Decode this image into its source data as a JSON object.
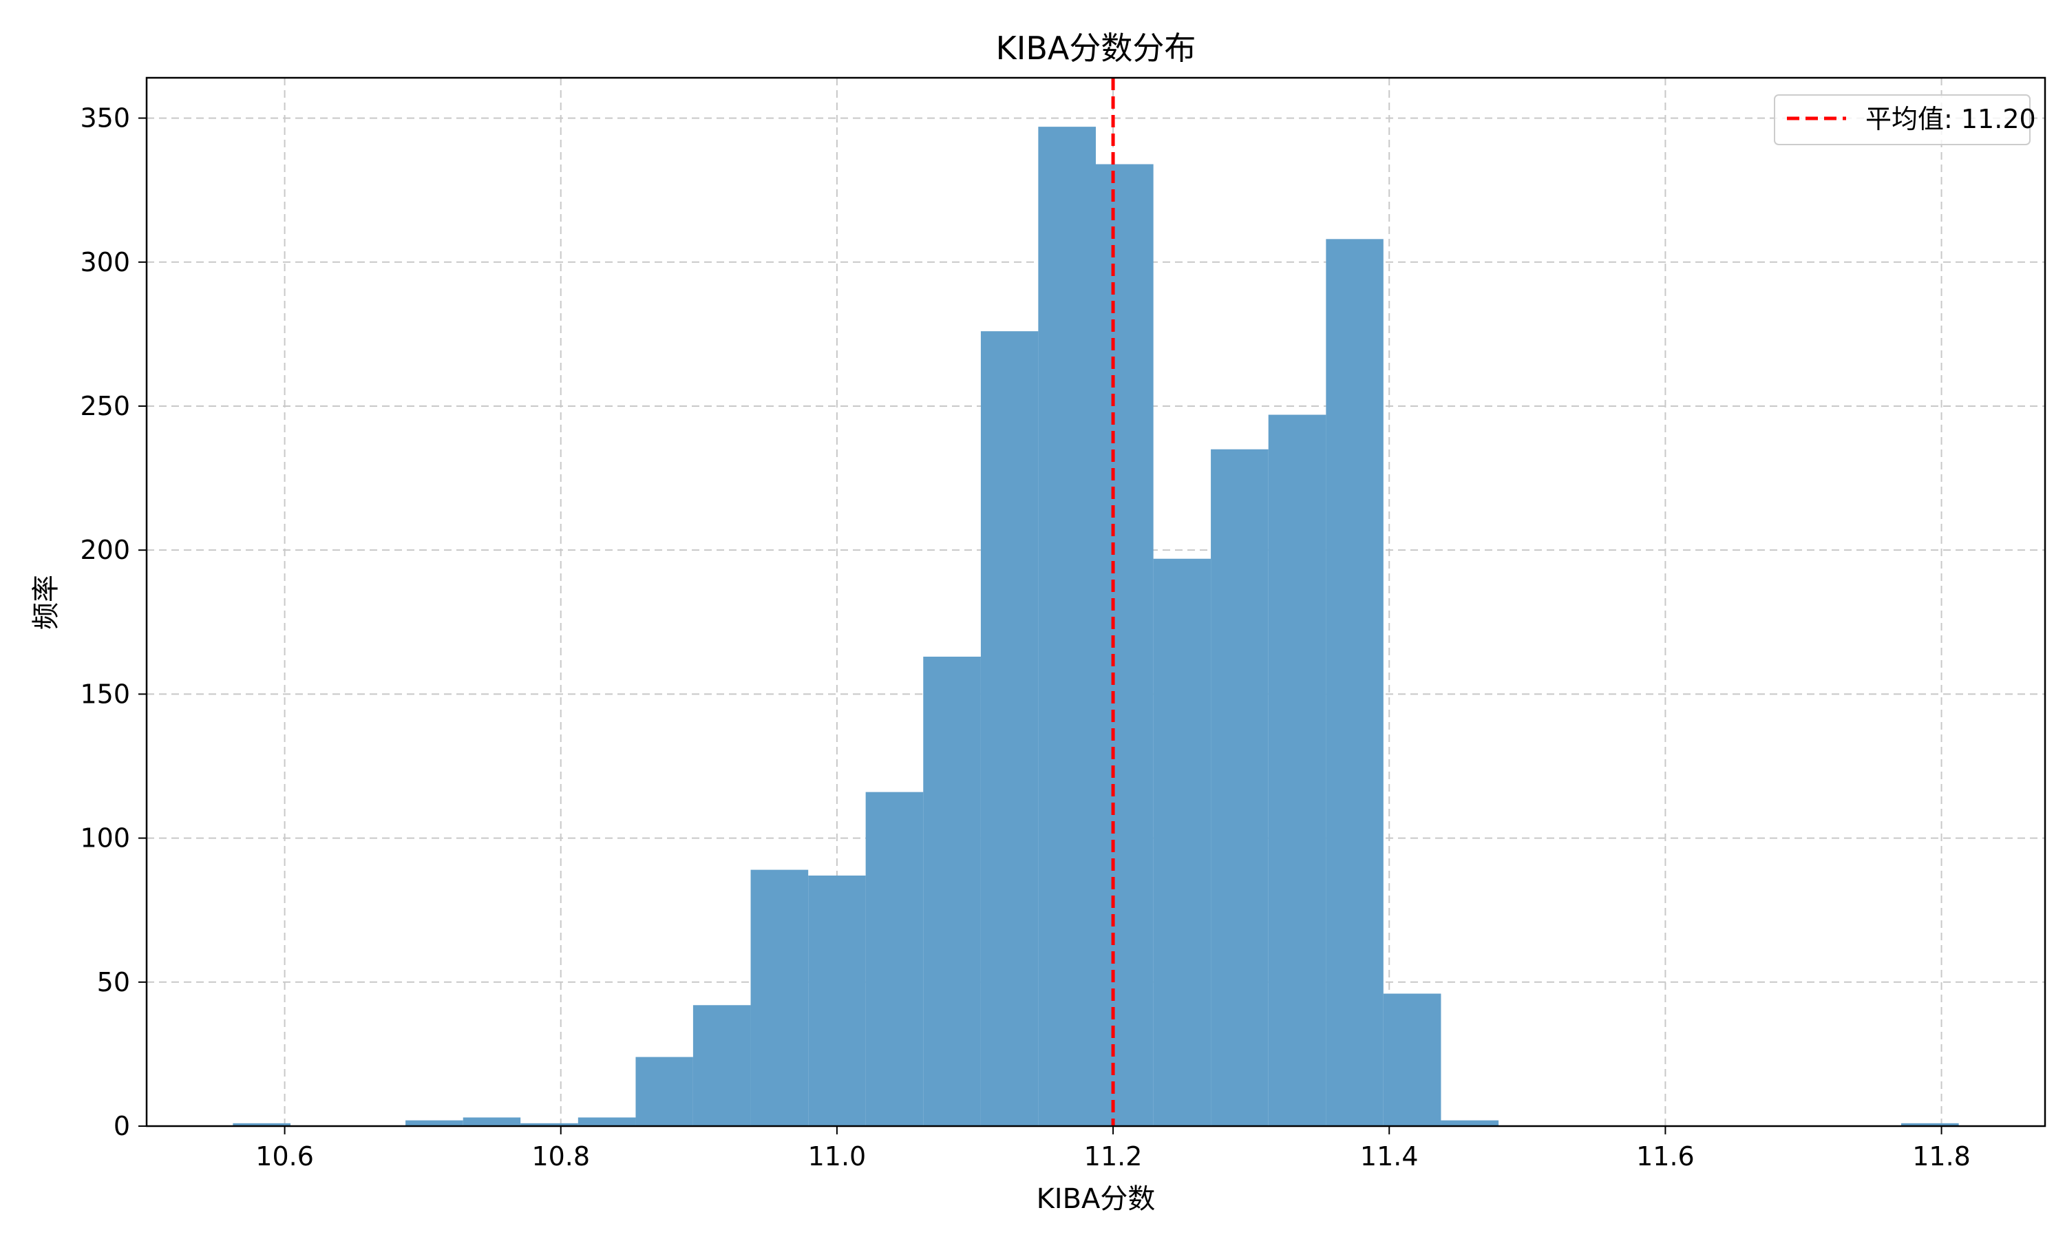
{
  "chart_data": {
    "type": "bar",
    "title": "KIBA分数分布",
    "xlabel": "KIBA分数",
    "ylabel": "频率",
    "xlim": [
      10.5,
      11.875
    ],
    "ylim": [
      0,
      364
    ],
    "xticks": [
      10.6,
      10.8,
      11.0,
      11.2,
      11.4,
      11.6,
      11.8
    ],
    "xtick_labels": [
      "10.6",
      "10.8",
      "11.0",
      "11.2",
      "11.4",
      "11.6",
      "11.8"
    ],
    "yticks": [
      0,
      50,
      100,
      150,
      200,
      250,
      300,
      350
    ],
    "ytick_labels": [
      "0",
      "50",
      "100",
      "150",
      "200",
      "250",
      "300",
      "350"
    ],
    "grid": true,
    "legend_position": "top-right",
    "bar_color": "#629fca",
    "bins": [
      {
        "x0": 10.5625,
        "x1": 10.6042,
        "count": 1
      },
      {
        "x0": 10.6042,
        "x1": 10.6458,
        "count": 0
      },
      {
        "x0": 10.6458,
        "x1": 10.6875,
        "count": 0
      },
      {
        "x0": 10.6875,
        "x1": 10.7292,
        "count": 2
      },
      {
        "x0": 10.7292,
        "x1": 10.7708,
        "count": 3
      },
      {
        "x0": 10.7708,
        "x1": 10.8125,
        "count": 1
      },
      {
        "x0": 10.8125,
        "x1": 10.8542,
        "count": 3
      },
      {
        "x0": 10.8542,
        "x1": 10.8958,
        "count": 24
      },
      {
        "x0": 10.8958,
        "x1": 10.9375,
        "count": 42
      },
      {
        "x0": 10.9375,
        "x1": 10.9792,
        "count": 89
      },
      {
        "x0": 10.9792,
        "x1": 11.0208,
        "count": 87
      },
      {
        "x0": 11.0208,
        "x1": 11.0625,
        "count": 116
      },
      {
        "x0": 11.0625,
        "x1": 11.1042,
        "count": 163
      },
      {
        "x0": 11.1042,
        "x1": 11.1458,
        "count": 276
      },
      {
        "x0": 11.1458,
        "x1": 11.1875,
        "count": 347
      },
      {
        "x0": 11.1875,
        "x1": 11.2292,
        "count": 334
      },
      {
        "x0": 11.2292,
        "x1": 11.2708,
        "count": 197
      },
      {
        "x0": 11.2708,
        "x1": 11.3125,
        "count": 235
      },
      {
        "x0": 11.3125,
        "x1": 11.3542,
        "count": 247
      },
      {
        "x0": 11.3542,
        "x1": 11.3958,
        "count": 308
      },
      {
        "x0": 11.3958,
        "x1": 11.4375,
        "count": 46
      },
      {
        "x0": 11.4375,
        "x1": 11.4792,
        "count": 2
      },
      {
        "x0": 11.7708,
        "x1": 11.8125,
        "count": 1
      }
    ],
    "mean_line": {
      "x": 11.2,
      "color": "#ff0000",
      "label": "平均值: 11.20"
    }
  }
}
